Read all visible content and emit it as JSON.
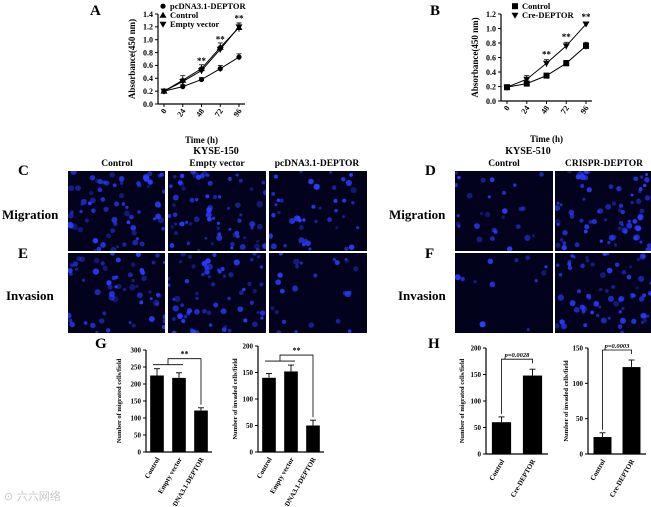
{
  "panels": {
    "A": "A",
    "B": "B",
    "C": "C",
    "D": "D",
    "E": "E",
    "F": "F",
    "G": "G",
    "H": "H"
  },
  "row_labels": {
    "migration": "Migration",
    "invasion": "Invasion"
  },
  "cell_lines": {
    "left": "KYSE-150",
    "right": "KYSE-510"
  },
  "micro_columns": {
    "left": [
      "Control",
      "Empty vector",
      "pcDNA3.1-DEPTOR"
    ],
    "right": [
      "Control",
      "CRISPR-DEPTOR"
    ]
  },
  "colors": {
    "stain": "#2a3cff",
    "background": "#02021c",
    "bar": "#000000"
  },
  "watermark": "⊙ 六六网络",
  "chart_data": [
    {
      "id": "A",
      "type": "line",
      "x": [
        0,
        24,
        48,
        72,
        96
      ],
      "xlabel": "Time (h)",
      "ylabel": "Absorbance(450 nm)",
      "ylim": [
        0.0,
        1.4
      ],
      "yticks": [
        "0.0",
        "0.2",
        "0.4",
        "0.6",
        "0.8",
        "1.0",
        "1.2",
        "1.4"
      ],
      "xticks": [
        "0",
        "24",
        "48",
        "72",
        "96"
      ],
      "series": [
        {
          "name": "pcDNA3.1-DEPTOR",
          "marker": "circle",
          "values": [
            0.2,
            0.27,
            0.38,
            0.55,
            0.73
          ],
          "err": [
            0.01,
            0.03,
            0.03,
            0.05,
            0.05
          ]
        },
        {
          "name": "Control",
          "marker": "triangle-up",
          "values": [
            0.2,
            0.37,
            0.55,
            0.88,
            1.19
          ],
          "err": [
            0.01,
            0.07,
            0.06,
            0.07,
            0.07
          ]
        },
        {
          "name": "Empty vector",
          "marker": "triangle-down",
          "values": [
            0.2,
            0.35,
            0.52,
            0.85,
            1.2
          ],
          "err": [
            0.01,
            0.04,
            0.05,
            0.05,
            0.06
          ]
        }
      ],
      "annotations": [
        {
          "x": 48,
          "y": 0.62,
          "text": "**"
        },
        {
          "x": 72,
          "y": 0.96,
          "text": "**"
        },
        {
          "x": 96,
          "y": 1.28,
          "text": "**"
        }
      ],
      "legend": "top-left"
    },
    {
      "id": "B",
      "type": "line",
      "x": [
        0,
        24,
        48,
        72,
        96
      ],
      "xlabel": "Time (h)",
      "ylabel": "Absorbance(450 nm)",
      "ylim": [
        0.0,
        1.2
      ],
      "yticks": [
        "0.0",
        "0.2",
        "0.4",
        "0.6",
        "0.8",
        "1.0",
        "1.2"
      ],
      "xticks": [
        "0",
        "24",
        "48",
        "72",
        "96"
      ],
      "series": [
        {
          "name": "Control",
          "marker": "square",
          "values": [
            0.19,
            0.24,
            0.35,
            0.52,
            0.76
          ],
          "err": [
            0.01,
            0.03,
            0.03,
            0.04,
            0.05
          ]
        },
        {
          "name": "Cre-DEPTOR",
          "marker": "triangle-down",
          "values": [
            0.19,
            0.3,
            0.52,
            0.76,
            1.06
          ],
          "err": [
            0.01,
            0.05,
            0.05,
            0.05,
            0.03
          ]
        }
      ],
      "annotations": [
        {
          "x": 48,
          "y": 0.6,
          "text": "**"
        },
        {
          "x": 72,
          "y": 0.84,
          "text": "**"
        },
        {
          "x": 96,
          "y": 1.12,
          "text": "**"
        }
      ],
      "legend": "top-left"
    },
    {
      "id": "G1",
      "type": "bar",
      "categories": [
        "Control",
        "Empty vector",
        "pcDNA3.1-DEPTOR"
      ],
      "values": [
        225,
        218,
        122
      ],
      "err": [
        20,
        15,
        8
      ],
      "ylabel": "Number of migrated cells/field",
      "ylim": [
        0,
        300
      ],
      "yticks": [
        "0",
        "50",
        "100",
        "150",
        "200",
        "250",
        "300"
      ],
      "significance": "**"
    },
    {
      "id": "G2",
      "type": "bar",
      "categories": [
        "Control",
        "Empty vector",
        "pcDNA3.1-DEPTOR"
      ],
      "values": [
        140,
        152,
        50
      ],
      "err": [
        8,
        12,
        10
      ],
      "ylabel": "Number of invaded cells/field",
      "ylim": [
        0,
        200
      ],
      "yticks": [
        "0",
        "50",
        "100",
        "150",
        "200"
      ],
      "significance": "**"
    },
    {
      "id": "H1",
      "type": "bar",
      "categories": [
        "Control",
        "Cre-DEPTOR"
      ],
      "values": [
        60,
        148
      ],
      "err": [
        10,
        12
      ],
      "ylabel": "Number of migrated cells/field",
      "ylim": [
        0,
        200
      ],
      "yticks": [
        "0",
        "50",
        "100",
        "150",
        "200"
      ],
      "significance": "p=0.0028"
    },
    {
      "id": "H2",
      "type": "bar",
      "categories": [
        "Control",
        "Cre-DEPTOR"
      ],
      "values": [
        24,
        123
      ],
      "err": [
        6,
        10
      ],
      "ylabel": "Number of invaded cells/field",
      "ylim": [
        0,
        150
      ],
      "yticks": [
        "0",
        "50",
        "100",
        "150"
      ],
      "significance": "p=0.0003"
    }
  ]
}
